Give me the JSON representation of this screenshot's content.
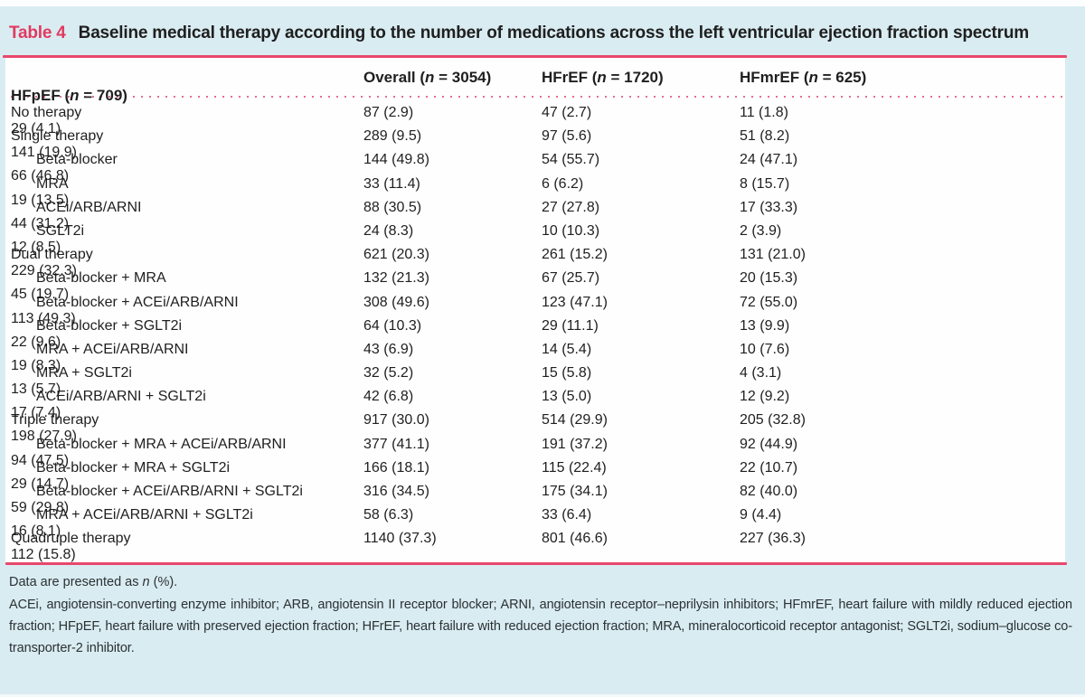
{
  "colors": {
    "page_bg": "#d9ecf2",
    "table_bg": "#fefefe",
    "accent": "#e23a5f",
    "rule": "#e8486c",
    "dots": "#e2708c",
    "text": "#1f1f1f",
    "footnote_text": "#2b3133"
  },
  "header": {
    "label": "Table 4",
    "title": "Baseline medical therapy according to the number of medications across the left ventricular ejection fraction spectrum"
  },
  "chart_data": {
    "type": "table",
    "title": "Table 4 Baseline medical therapy according to the number of medications across the left ventricular ejection fraction spectrum",
    "columns": [
      {
        "name": "Overall",
        "n": "3054"
      },
      {
        "name": "HFrEF",
        "n": "1720"
      },
      {
        "name": "HFmrEF",
        "n": "625"
      },
      {
        "name": "HFpEF",
        "n": "709"
      }
    ],
    "rows": [
      {
        "label": "No therapy",
        "indent": 0,
        "values": [
          "87 (2.9)",
          "47 (2.7)",
          "11 (1.8)",
          "29 (4.1)"
        ]
      },
      {
        "label": "Single therapy",
        "indent": 0,
        "values": [
          "289 (9.5)",
          "97 (5.6)",
          "51 (8.2)",
          "141 (19.9)"
        ]
      },
      {
        "label": "Beta-blocker",
        "indent": 1,
        "values": [
          "144 (49.8)",
          "54 (55.7)",
          "24 (47.1)",
          "66 (46.8)"
        ]
      },
      {
        "label": "MRA",
        "indent": 1,
        "values": [
          "33 (11.4)",
          "6 (6.2)",
          "8 (15.7)",
          "19 (13.5)"
        ]
      },
      {
        "label": "ACEi/ARB/ARNI",
        "indent": 1,
        "values": [
          "88 (30.5)",
          "27 (27.8)",
          "17 (33.3)",
          "44 (31.2)"
        ]
      },
      {
        "label": "SGLT2i",
        "indent": 1,
        "values": [
          "24 (8.3)",
          "10 (10.3)",
          "2 (3.9)",
          "12 (8.5)"
        ]
      },
      {
        "label": "Dual therapy",
        "indent": 0,
        "values": [
          "621 (20.3)",
          "261 (15.2)",
          "131 (21.0)",
          "229 (32.3)"
        ]
      },
      {
        "label": "Beta-blocker + MRA",
        "indent": 1,
        "values": [
          "132 (21.3)",
          "67 (25.7)",
          "20 (15.3)",
          "45 (19.7)"
        ]
      },
      {
        "label": "Beta-blocker + ACEi/ARB/ARNI",
        "indent": 1,
        "values": [
          "308 (49.6)",
          "123 (47.1)",
          "72 (55.0)",
          "113 (49.3)"
        ]
      },
      {
        "label": "Beta-blocker + SGLT2i",
        "indent": 1,
        "values": [
          "64 (10.3)",
          "29 (11.1)",
          "13 (9.9)",
          "22 (9.6)"
        ]
      },
      {
        "label": "MRA + ACEi/ARB/ARNI",
        "indent": 1,
        "values": [
          "43 (6.9)",
          "14 (5.4)",
          "10 (7.6)",
          "19 (8.3)"
        ]
      },
      {
        "label": "MRA + SGLT2i",
        "indent": 1,
        "values": [
          "32 (5.2)",
          "15 (5.8)",
          "4 (3.1)",
          "13 (5.7)"
        ]
      },
      {
        "label": "ACEi/ARB/ARNI + SGLT2i",
        "indent": 1,
        "values": [
          "42 (6.8)",
          "13 (5.0)",
          "12 (9.2)",
          "17 (7.4)"
        ]
      },
      {
        "label": "Triple therapy",
        "indent": 0,
        "values": [
          "917 (30.0)",
          "514 (29.9)",
          "205 (32.8)",
          "198 (27.9)"
        ]
      },
      {
        "label": "Beta-blocker + MRA + ACEi/ARB/ARNI",
        "indent": 1,
        "values": [
          "377 (41.1)",
          "191 (37.2)",
          "92 (44.9)",
          "94 (47.5)"
        ]
      },
      {
        "label": "Beta-blocker + MRA + SGLT2i",
        "indent": 1,
        "values": [
          "166 (18.1)",
          "115 (22.4)",
          "22 (10.7)",
          "29 (14.7)"
        ]
      },
      {
        "label": "Beta-blocker + ACEi/ARB/ARNI + SGLT2i",
        "indent": 1,
        "values": [
          "316 (34.5)",
          "175 (34.1)",
          "82 (40.0)",
          "59 (29.8)"
        ]
      },
      {
        "label": "MRA + ACEi/ARB/ARNI + SGLT2i",
        "indent": 1,
        "values": [
          "58 (6.3)",
          "33 (6.4)",
          "9 (4.4)",
          "16 (8.1)"
        ]
      },
      {
        "label": "Quadruple therapy",
        "indent": 0,
        "values": [
          "1140 (37.3)",
          "801 (46.6)",
          "227 (36.3)",
          "112 (15.8)"
        ]
      }
    ]
  },
  "footnotes": {
    "data_note": {
      "prefix": "Data are presented as ",
      "italic": "n",
      "suffix": " (%)."
    },
    "abbreviations": "ACEi, angiotensin-converting enzyme inhibitor; ARB, angiotensin II receptor blocker; ARNI, angiotensin receptor–neprilysin inhibitors; HFmrEF, heart failure with mildly reduced ejection fraction; HFpEF, heart failure with preserved ejection fraction; HFrEF, heart failure with reduced ejection fraction; MRA, mineralocorticoid receptor antagonist; SGLT2i, sodium–glucose co-transporter-2 inhibitor."
  }
}
